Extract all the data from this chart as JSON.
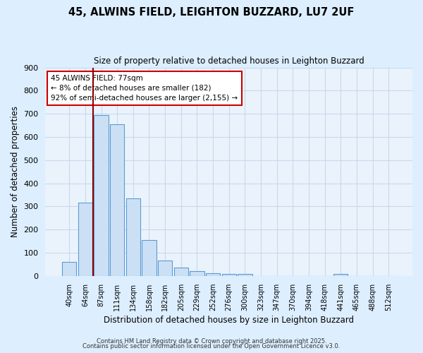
{
  "title": "45, ALWINS FIELD, LEIGHTON BUZZARD, LU7 2UF",
  "subtitle": "Size of property relative to detached houses in Leighton Buzzard",
  "xlabel": "Distribution of detached houses by size in Leighton Buzzard",
  "ylabel": "Number of detached properties",
  "bar_labels": [
    "40sqm",
    "64sqm",
    "87sqm",
    "111sqm",
    "134sqm",
    "158sqm",
    "182sqm",
    "205sqm",
    "229sqm",
    "252sqm",
    "276sqm",
    "300sqm",
    "323sqm",
    "347sqm",
    "370sqm",
    "394sqm",
    "418sqm",
    "441sqm",
    "465sqm",
    "488sqm",
    "512sqm"
  ],
  "bar_values": [
    60,
    315,
    695,
    655,
    335,
    155,
    68,
    35,
    20,
    12,
    8,
    8,
    0,
    0,
    0,
    0,
    0,
    8,
    0,
    0,
    0
  ],
  "bar_color": "#cce0f5",
  "bar_edge_color": "#5b9bd5",
  "bg_color": "#ddeeff",
  "plot_bg_color": "#eaf3fc",
  "grid_color": "#c8d8ea",
  "vline_color": "#8b0000",
  "vline_x": 1.5,
  "annotation_text": "45 ALWINS FIELD: 77sqm\n← 8% of detached houses are smaller (182)\n92% of semi-detached houses are larger (2,155) →",
  "annotation_box_color": "#ffffff",
  "annotation_box_edge_color": "#cc0000",
  "ylim": [
    0,
    900
  ],
  "yticks": [
    0,
    100,
    200,
    300,
    400,
    500,
    600,
    700,
    800,
    900
  ],
  "footer_line1": "Contains HM Land Registry data © Crown copyright and database right 2025.",
  "footer_line2": "Contains public sector information licensed under the Open Government Licence v3.0."
}
